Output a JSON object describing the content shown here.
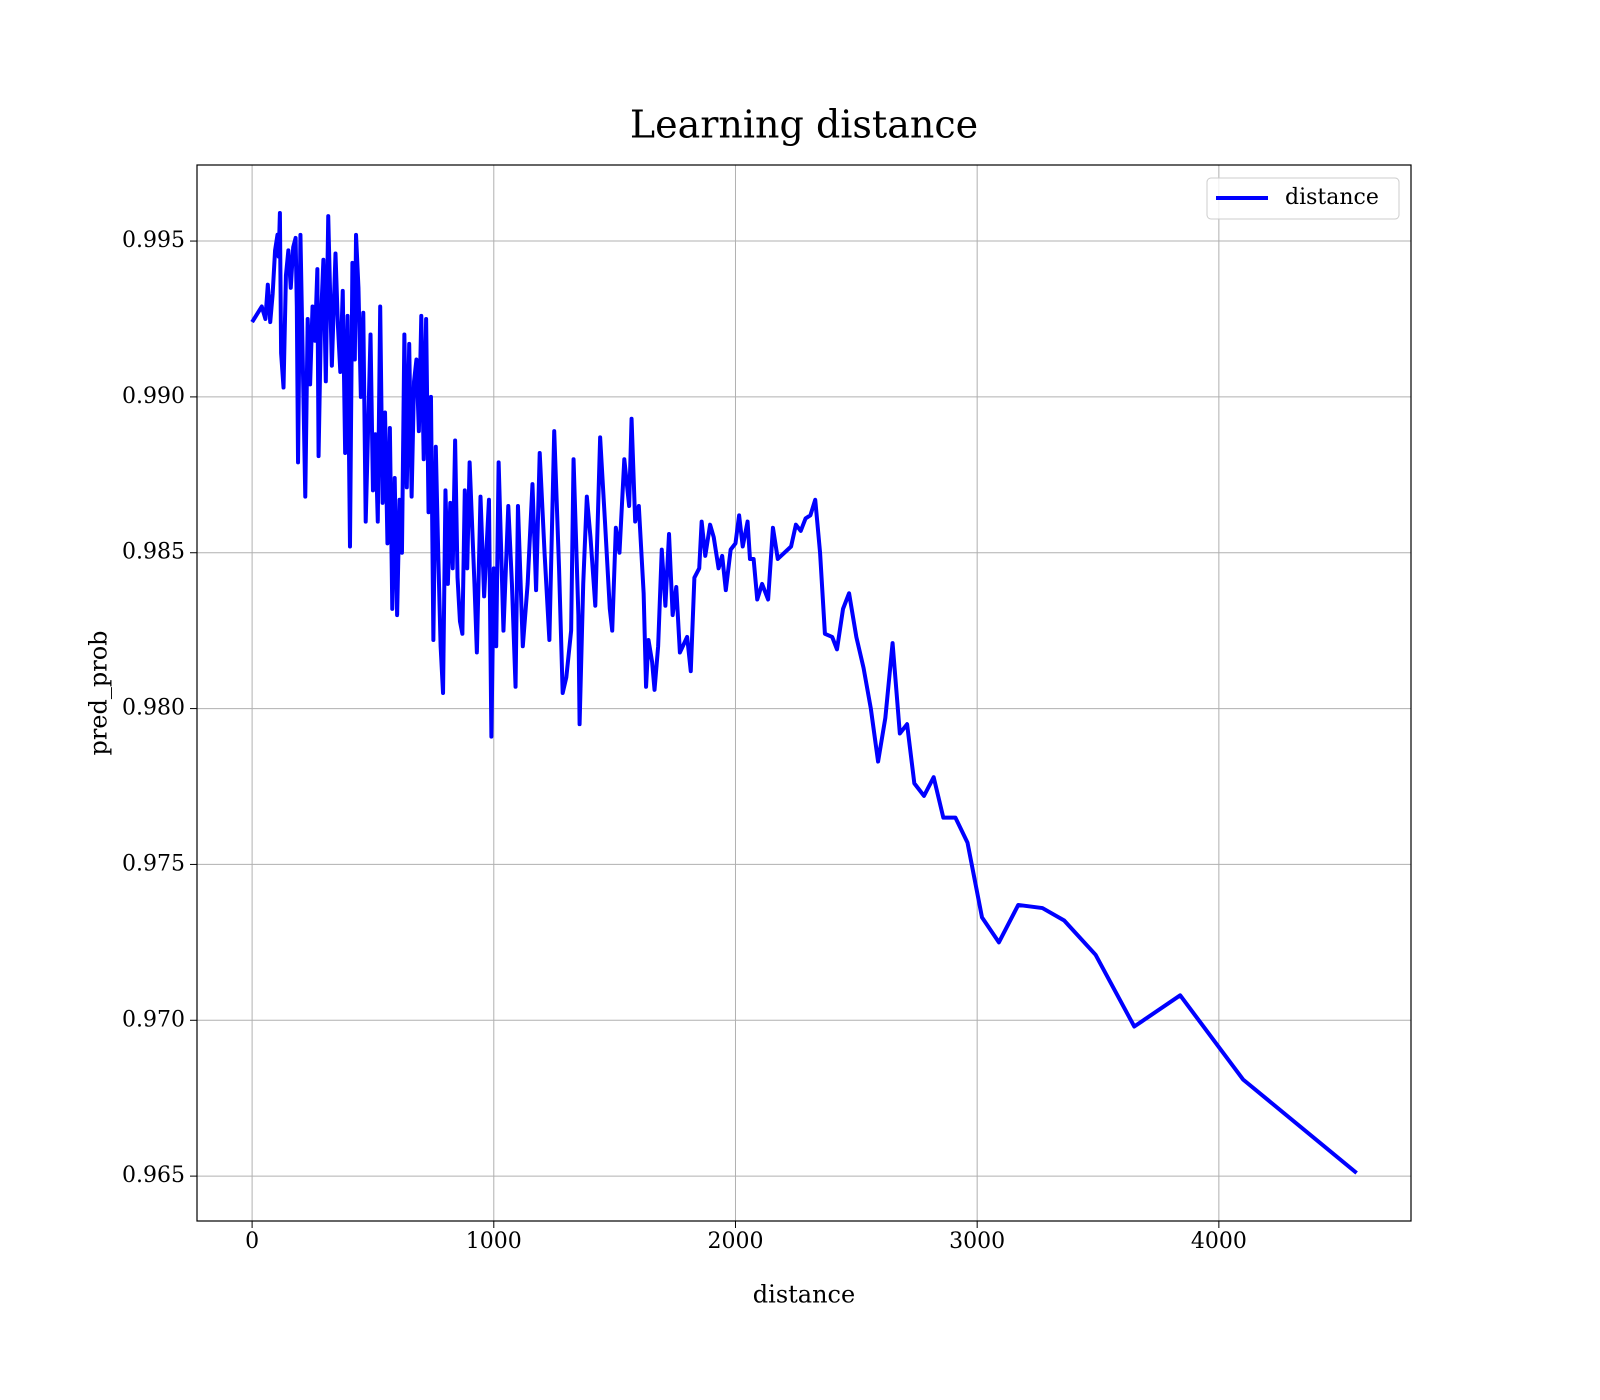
{
  "chart_data": {
    "type": "line",
    "title": "Learning distance",
    "xlabel": "distance",
    "ylabel": "pred_prob",
    "x": [
      0,
      40,
      55,
      65,
      75,
      85,
      95,
      105,
      110,
      115,
      120,
      130,
      140,
      150,
      160,
      170,
      180,
      185,
      190,
      200,
      210,
      220,
      230,
      240,
      250,
      260,
      270,
      275,
      285,
      295,
      305,
      315,
      330,
      345,
      355,
      365,
      375,
      385,
      395,
      405,
      415,
      425,
      430,
      440,
      450,
      460,
      470,
      480,
      490,
      500,
      510,
      520,
      530,
      540,
      550,
      560,
      570,
      580,
      590,
      600,
      610,
      620,
      630,
      640,
      650,
      660,
      670,
      680,
      690,
      700,
      710,
      720,
      730,
      740,
      750,
      760,
      770,
      780,
      790,
      800,
      810,
      820,
      830,
      840,
      850,
      860,
      870,
      880,
      890,
      900,
      920,
      930,
      945,
      960,
      980,
      990,
      1000,
      1010,
      1020,
      1040,
      1060,
      1075,
      1090,
      1100,
      1120,
      1140,
      1160,
      1175,
      1190,
      1210,
      1230,
      1250,
      1270,
      1285,
      1300,
      1320,
      1330,
      1350,
      1355,
      1370,
      1385,
      1400,
      1420,
      1440,
      1460,
      1480,
      1490,
      1505,
      1520,
      1540,
      1560,
      1570,
      1585,
      1600,
      1620,
      1630,
      1640,
      1655,
      1665,
      1680,
      1695,
      1710,
      1725,
      1740,
      1755,
      1770,
      1800,
      1815,
      1830,
      1850,
      1860,
      1875,
      1895,
      1910,
      1930,
      1945,
      1960,
      1980,
      2000,
      2015,
      2030,
      2050,
      2060,
      2075,
      2090,
      2110,
      2135,
      2155,
      2175,
      2230,
      2250,
      2270,
      2290,
      2310,
      2330,
      2350,
      2370,
      2400,
      2420,
      2445,
      2470,
      2500,
      2530,
      2560,
      2590,
      2620,
      2650,
      2680,
      2710,
      2740,
      2780,
      2820,
      2860,
      2910,
      2960,
      3020,
      3090,
      3170,
      3270,
      3360,
      3490,
      3650,
      3840,
      4100,
      4570
    ],
    "series": [
      {
        "name": "distance",
        "color": "#0000ff",
        "values": [
          0.9924,
          0.9929,
          0.9925,
          0.9936,
          0.9924,
          0.9933,
          0.9947,
          0.9952,
          0.9945,
          0.9959,
          0.9914,
          0.9903,
          0.9939,
          0.9947,
          0.9935,
          0.9948,
          0.9951,
          0.9929,
          0.9879,
          0.9952,
          0.991,
          0.9868,
          0.9925,
          0.9904,
          0.9929,
          0.9918,
          0.9941,
          0.9881,
          0.9925,
          0.9944,
          0.9905,
          0.9958,
          0.991,
          0.9946,
          0.9923,
          0.9908,
          0.9934,
          0.9882,
          0.9926,
          0.9852,
          0.9943,
          0.9912,
          0.9952,
          0.9935,
          0.99,
          0.9927,
          0.986,
          0.989,
          0.992,
          0.987,
          0.9888,
          0.986,
          0.9929,
          0.9866,
          0.9895,
          0.9853,
          0.989,
          0.9832,
          0.9874,
          0.983,
          0.9867,
          0.985,
          0.992,
          0.9871,
          0.9917,
          0.9868,
          0.9905,
          0.9912,
          0.9889,
          0.9926,
          0.988,
          0.9925,
          0.9863,
          0.99,
          0.9822,
          0.9884,
          0.985,
          0.982,
          0.9805,
          0.987,
          0.984,
          0.9866,
          0.9845,
          0.9886,
          0.9842,
          0.9828,
          0.9824,
          0.987,
          0.9845,
          0.9879,
          0.984,
          0.9818,
          0.9868,
          0.9836,
          0.9867,
          0.9791,
          0.9845,
          0.982,
          0.9879,
          0.9825,
          0.9865,
          0.984,
          0.9807,
          0.9865,
          0.982,
          0.984,
          0.9872,
          0.9838,
          0.9882,
          0.985,
          0.9822,
          0.9889,
          0.9845,
          0.9805,
          0.981,
          0.9825,
          0.988,
          0.983,
          0.9795,
          0.984,
          0.9868,
          0.9855,
          0.9833,
          0.9887,
          0.986,
          0.9832,
          0.9825,
          0.9858,
          0.985,
          0.988,
          0.9865,
          0.9893,
          0.986,
          0.9865,
          0.9837,
          0.9807,
          0.9822,
          0.9815,
          0.9806,
          0.982,
          0.9851,
          0.9833,
          0.9856,
          0.983,
          0.9839,
          0.9818,
          0.9823,
          0.9812,
          0.9842,
          0.9845,
          0.986,
          0.9849,
          0.9859,
          0.9855,
          0.9845,
          0.9849,
          0.9838,
          0.9851,
          0.9853,
          0.9862,
          0.9852,
          0.986,
          0.9848,
          0.9848,
          0.9835,
          0.984,
          0.9835,
          0.9858,
          0.9848,
          0.9852,
          0.9859,
          0.9857,
          0.9861,
          0.9862,
          0.9867,
          0.985,
          0.9824,
          0.9823,
          0.9819,
          0.9832,
          0.9837,
          0.9823,
          0.9813,
          0.98,
          0.9783,
          0.9797,
          0.9821,
          0.9792,
          0.9795,
          0.9776,
          0.9772,
          0.9778,
          0.9765,
          0.9765,
          0.9757,
          0.9733,
          0.9725,
          0.9737,
          0.9736,
          0.9732,
          0.9721,
          0.9698,
          0.9708,
          0.9681,
          0.9651
        ]
      }
    ],
    "xlim": [
      -228,
      4795
    ],
    "xticks": [
      0,
      1000,
      2000,
      3000,
      4000
    ],
    "ylim": [
      0.96356,
      0.99744
    ],
    "yticks": [
      0.965,
      {
        "value": 0.97,
        "label": "0.970"
      },
      0.975,
      {
        "value": 0.98,
        "label": "0.980"
      },
      0.985,
      {
        "value": 0.99,
        "label": "0.990"
      },
      0.995
    ],
    "grid": true,
    "legend": "upper right"
  }
}
